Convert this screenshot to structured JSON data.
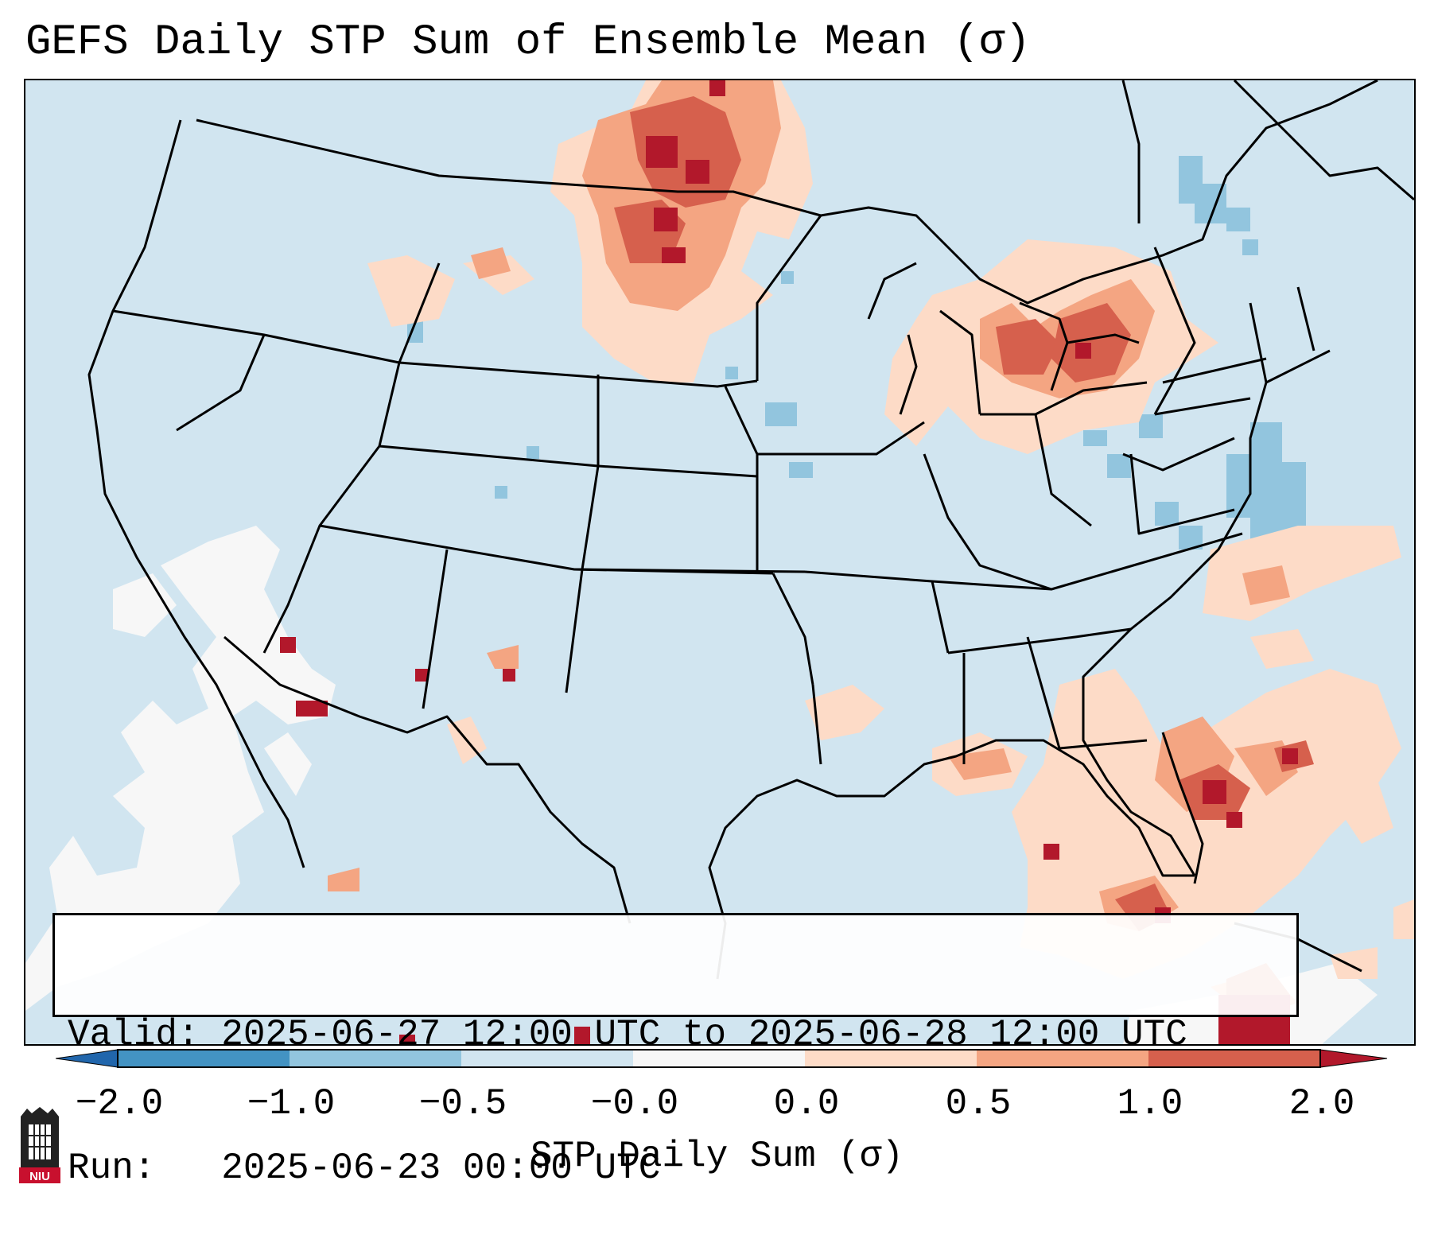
{
  "title": "GEFS Daily STP Sum of Ensemble Mean (σ)",
  "info": {
    "valid_line": "Valid: 2025-06-27 12:00 UTC to 2025-06-28 12:00 UTC",
    "run_line": "Run:   2025-06-23 00:00 UTC"
  },
  "colorbar": {
    "label": "STP Daily Sum (σ)",
    "ticks": [
      "−2.0",
      "−1.0",
      "−0.5",
      "−0.0",
      "0.0",
      "0.5",
      "1.0",
      "2.0"
    ],
    "bins": [
      {
        "range": "< -2.0",
        "color": "#2166ac"
      },
      {
        "range": "-2.0 to -1.0",
        "color": "#4393c3"
      },
      {
        "range": "-1.0 to -0.5",
        "color": "#92c5de"
      },
      {
        "range": "-0.5 to -0.0",
        "color": "#d1e5f0"
      },
      {
        "range": "-0.0 to 0.0",
        "color": "#f7f7f7"
      },
      {
        "range": "0.0 to 0.5",
        "color": "#fddbc7"
      },
      {
        "range": "0.5 to 1.0",
        "color": "#f4a582"
      },
      {
        "range": "1.0 to 2.0",
        "color": "#d6604d"
      },
      {
        "range": "> 2.0",
        "color": "#b2182b"
      }
    ]
  },
  "colors": {
    "background_bin": "#d1e5f0",
    "white_bin": "#f7f7f7",
    "borders": "#000000"
  },
  "logo": {
    "text": "NIU",
    "color": "#c8102e"
  }
}
